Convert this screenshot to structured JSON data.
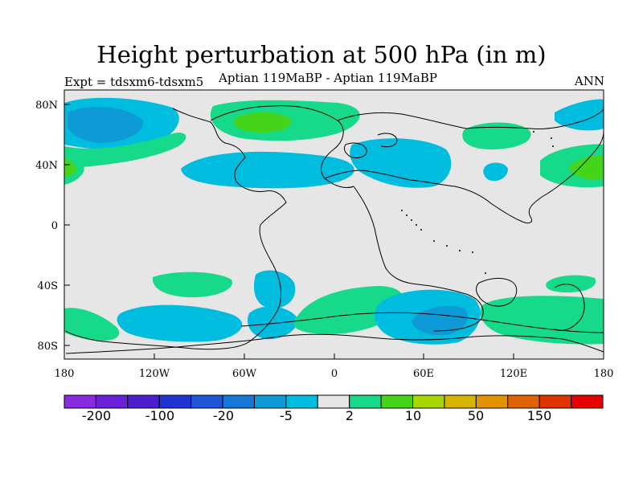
{
  "title": "Height perturbation at 500 hPa (in m)",
  "left_subtitle": "Expt = tdsxm6-tdsxm5",
  "center_subtitle": "Aptian   119MaBP - Aptian   119MaBP",
  "right_subtitle": "ANN",
  "map": {
    "x_ticks": [
      "180",
      "120W",
      "60W",
      "0",
      "60E",
      "120E",
      "180"
    ],
    "y_ticks": [
      "80N",
      "40N",
      "0",
      "40S",
      "80S"
    ],
    "lon_range": [
      -180,
      180
    ],
    "lat_range": [
      -90,
      90
    ]
  },
  "colorbar": {
    "colors": [
      "#8a2be2",
      "#6a1fd8",
      "#4b1fd0",
      "#2233d6",
      "#1f55d8",
      "#1677d9",
      "#0d9ad6",
      "#00bcde",
      "#e6e6e6",
      "#17d98a",
      "#44d419",
      "#a8d700",
      "#d8b400",
      "#e39200",
      "#e06300",
      "#df3300",
      "#e60000"
    ],
    "labels": [
      "-200",
      "-100",
      "-20",
      "-5",
      "2",
      "10",
      "50",
      "150"
    ]
  },
  "colors": {
    "land_bg": "#e6e6e6",
    "light_blue": "#00bcde",
    "mid_blue": "#0d9ad6",
    "dark_blue": "#1677d9",
    "green": "#17d98a",
    "bright_green": "#44d419"
  }
}
